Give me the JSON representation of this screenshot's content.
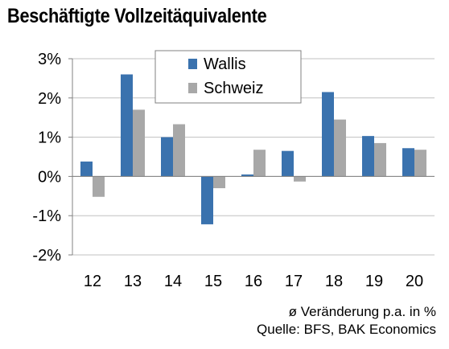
{
  "title": "Beschäftigte Vollzeitäquivalente",
  "footnote": "ø Veränderung p.a. in %",
  "source": "Quelle: BFS, BAK Economics",
  "colors": {
    "wallis": "#3a72ae",
    "schweiz": "#a8a8a8",
    "grid": "#c0c0c0",
    "axis": "#808080"
  },
  "chart_data": {
    "type": "bar",
    "categories": [
      "12",
      "13",
      "14",
      "15",
      "16",
      "17",
      "18",
      "19",
      "20"
    ],
    "series": [
      {
        "name": "Wallis",
        "values": [
          0.38,
          2.6,
          1.0,
          -1.22,
          0.05,
          0.65,
          2.15,
          1.03,
          0.72
        ]
      },
      {
        "name": "Schweiz",
        "values": [
          -0.52,
          1.7,
          1.33,
          -0.3,
          0.68,
          -0.13,
          1.45,
          0.85,
          0.68
        ]
      }
    ],
    "yticks": [
      "3%",
      "2%",
      "1%",
      "0%",
      "-1%",
      "-2%"
    ],
    "ylim": [
      -2,
      3
    ],
    "legend": "top-center",
    "grid": true
  }
}
